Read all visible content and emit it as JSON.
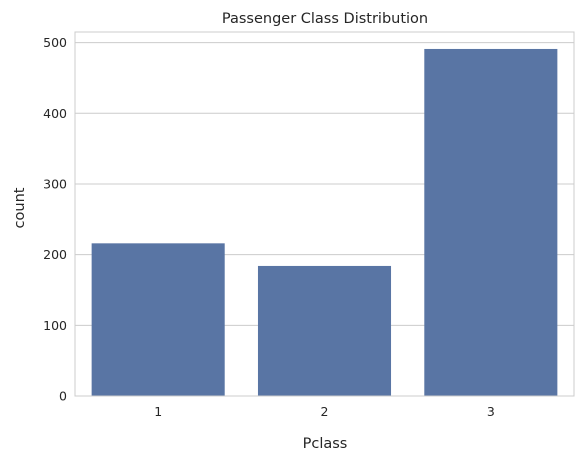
{
  "chart_data": {
    "type": "bar",
    "title": "Passenger Class Distribution",
    "xlabel": "Pclass",
    "ylabel": "count",
    "categories": [
      "1",
      "2",
      "3"
    ],
    "values": [
      216,
      184,
      491
    ],
    "ylim": [
      0,
      515
    ],
    "yticks": [
      0,
      100,
      200,
      300,
      400,
      500
    ],
    "grid": true,
    "bar_color": "#5975a4",
    "grid_color": "#cccccc"
  }
}
